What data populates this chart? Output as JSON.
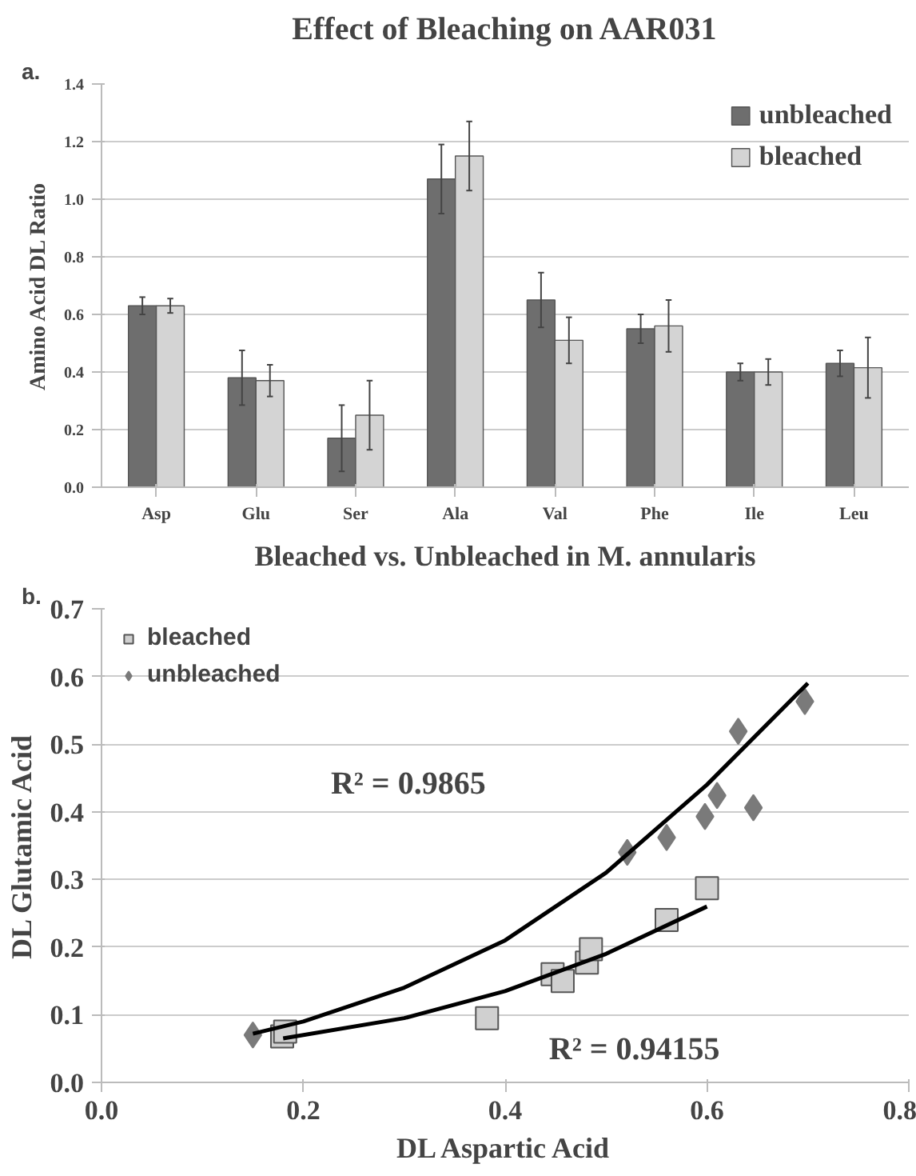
{
  "chart_data": [
    {
      "type": "bar",
      "title": "Effect of Bleaching on AAR031",
      "ylabel": "Amino Acid DL Ratio",
      "annotations": [
        "a."
      ],
      "categories": [
        "Asp",
        "Glu",
        "Ser",
        "Ala",
        "Val",
        "Phe",
        "Ile",
        "Leu"
      ],
      "series": [
        {
          "name": "unbleached",
          "color": "#6e6e6e",
          "values": [
            0.63,
            0.38,
            0.17,
            1.07,
            0.65,
            0.55,
            0.4,
            0.43
          ],
          "errors": [
            0.03,
            0.095,
            0.115,
            0.12,
            0.095,
            0.05,
            0.03,
            0.045
          ]
        },
        {
          "name": "bleached",
          "color": "#d4d4d4",
          "values": [
            0.63,
            0.37,
            0.25,
            1.15,
            0.51,
            0.56,
            0.4,
            0.415
          ],
          "errors": [
            0.025,
            0.055,
            0.12,
            0.12,
            0.08,
            0.09,
            0.045,
            0.105
          ]
        }
      ],
      "ylim": [
        0,
        1.4
      ],
      "yticks": [
        {
          "value": 0,
          "label": "0.0"
        },
        {
          "value": 0.2,
          "label": "0.2"
        },
        {
          "value": 0.4,
          "label": "0.4"
        },
        {
          "value": 0.6,
          "label": "0.6"
        },
        {
          "value": 0.8,
          "label": "0.8"
        },
        {
          "value": 1.0,
          "label": "1.0"
        },
        {
          "value": 1.2,
          "label": "1.2"
        },
        {
          "value": 1.4,
          "label": "1.4"
        }
      ],
      "grid": "y",
      "legend": "top right"
    },
    {
      "type": "scatter",
      "title": "Bleached vs. Unbleached in M. annularis",
      "xlabel": "DL Aspartic Acid",
      "ylabel": "DL Glutamic Acid",
      "annotations": [
        "b.",
        "R² = 0.9865",
        "R² = 0.94155"
      ],
      "series": [
        {
          "name": "bleached",
          "type": "scatter",
          "marker": "square",
          "color": "#d0d0d0",
          "x": [
            0.179,
            0.182,
            0.382,
            0.447,
            0.457,
            0.481,
            0.485,
            0.56,
            0.6
          ],
          "values": [
            0.068,
            0.075,
            0.095,
            0.16,
            0.15,
            0.177,
            0.197,
            0.24,
            0.287
          ]
        },
        {
          "name": "unbleached",
          "type": "scatter",
          "marker": "diamond",
          "color": "#7a7a7a",
          "x": [
            0.15,
            0.521,
            0.56,
            0.598,
            0.61,
            0.631,
            0.646,
            0.697
          ],
          "values": [
            0.07,
            0.34,
            0.362,
            0.393,
            0.424,
            0.519,
            0.406,
            0.563
          ]
        },
        {
          "type": "line",
          "color": "#000000",
          "x": [
            0.15,
            0.2,
            0.3,
            0.4,
            0.5,
            0.6,
            0.7
          ],
          "values": [
            0.072,
            0.09,
            0.14,
            0.21,
            0.31,
            0.44,
            0.59
          ]
        },
        {
          "type": "line",
          "color": "#000000",
          "x": [
            0.18,
            0.3,
            0.4,
            0.5,
            0.6
          ],
          "values": [
            0.065,
            0.095,
            0.135,
            0.19,
            0.26
          ]
        }
      ],
      "xlim": [
        0,
        0.8
      ],
      "xticks": [
        {
          "value": 0,
          "label": "0.0"
        },
        {
          "value": 0.2,
          "label": "0.2"
        },
        {
          "value": 0.4,
          "label": "0.4"
        },
        {
          "value": 0.6,
          "label": "0.6"
        },
        {
          "value": 0.8,
          "label": "0.8"
        }
      ],
      "ylim": [
        0,
        0.7
      ],
      "yticks": [
        {
          "value": 0,
          "label": "0.0"
        },
        {
          "value": 0.1,
          "label": "0.1"
        },
        {
          "value": 0.2,
          "label": "0.2"
        },
        {
          "value": 0.3,
          "label": "0.3"
        },
        {
          "value": 0.4,
          "label": "0.4"
        },
        {
          "value": 0.5,
          "label": "0.5"
        },
        {
          "value": 0.6,
          "label": "0.6"
        },
        {
          "value": 0.7,
          "label": "0.7"
        }
      ],
      "grid": "y",
      "legend": "top left"
    }
  ]
}
